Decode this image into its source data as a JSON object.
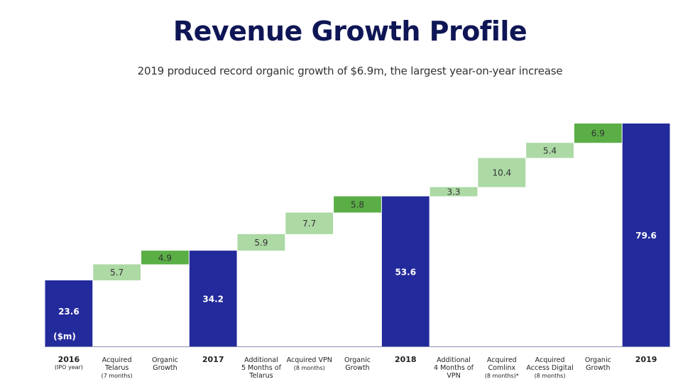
{
  "title": "Revenue Growth Profile",
  "subtitle": "2019 produced record organic growth of $6.9m, the largest year-on-year increase",
  "chart_data": {
    "type": "bar",
    "subtype": "waterfall",
    "title": "Revenue Growth Profile",
    "subtitle": "2019 produced record organic growth of $6.9m, the largest year-on-year increase",
    "unit_label": "($m)",
    "ylim": [
      0,
      79.6
    ],
    "grid": false,
    "legend": "none",
    "colors": {
      "total": "#232a9b",
      "acquisition": "#acd9a4",
      "organic": "#5aae45"
    },
    "categories": [
      {
        "lines": [
          "2016"
        ],
        "sub": [
          "(IPO year)"
        ],
        "kind": "total",
        "value": 23.6,
        "label": "23.6"
      },
      {
        "lines": [
          "Acquired",
          "Telarus"
        ],
        "sub": [
          "(7 months)"
        ],
        "kind": "acquisition",
        "value": 5.7,
        "label": "5.7"
      },
      {
        "lines": [
          "Organic",
          "Growth"
        ],
        "sub": [],
        "kind": "organic",
        "value": 4.9,
        "label": "4.9"
      },
      {
        "lines": [
          "2017"
        ],
        "sub": [],
        "kind": "total",
        "value": 34.2,
        "label": "34.2"
      },
      {
        "lines": [
          "Additional",
          "5 Months of",
          "Telarus"
        ],
        "sub": [],
        "kind": "acquisition",
        "value": 5.9,
        "label": "5.9"
      },
      {
        "lines": [
          "Acquired VPN"
        ],
        "sub": [
          "(8 months)"
        ],
        "kind": "acquisition",
        "value": 7.7,
        "label": "7.7"
      },
      {
        "lines": [
          "Organic",
          "Growth"
        ],
        "sub": [],
        "kind": "organic",
        "value": 5.8,
        "label": "5.8"
      },
      {
        "lines": [
          "2018"
        ],
        "sub": [],
        "kind": "total",
        "value": 53.6,
        "label": "53.6"
      },
      {
        "lines": [
          "Additional",
          "4 Months of",
          "VPN"
        ],
        "sub": [],
        "kind": "acquisition",
        "value": 3.3,
        "label": "3.3"
      },
      {
        "lines": [
          "Acquired",
          "Comlinx"
        ],
        "sub": [
          "(8 months)*"
        ],
        "kind": "acquisition",
        "value": 10.4,
        "label": "10.4"
      },
      {
        "lines": [
          "Acquired",
          "Access Digital"
        ],
        "sub": [
          "(8 months)"
        ],
        "kind": "acquisition",
        "value": 5.4,
        "label": "5.4"
      },
      {
        "lines": [
          "Organic",
          "Growth"
        ],
        "sub": [],
        "kind": "organic",
        "value": 6.9,
        "label": "6.9"
      },
      {
        "lines": [
          "2019"
        ],
        "sub": [],
        "kind": "total",
        "value": 79.6,
        "label": "79.6"
      }
    ]
  }
}
